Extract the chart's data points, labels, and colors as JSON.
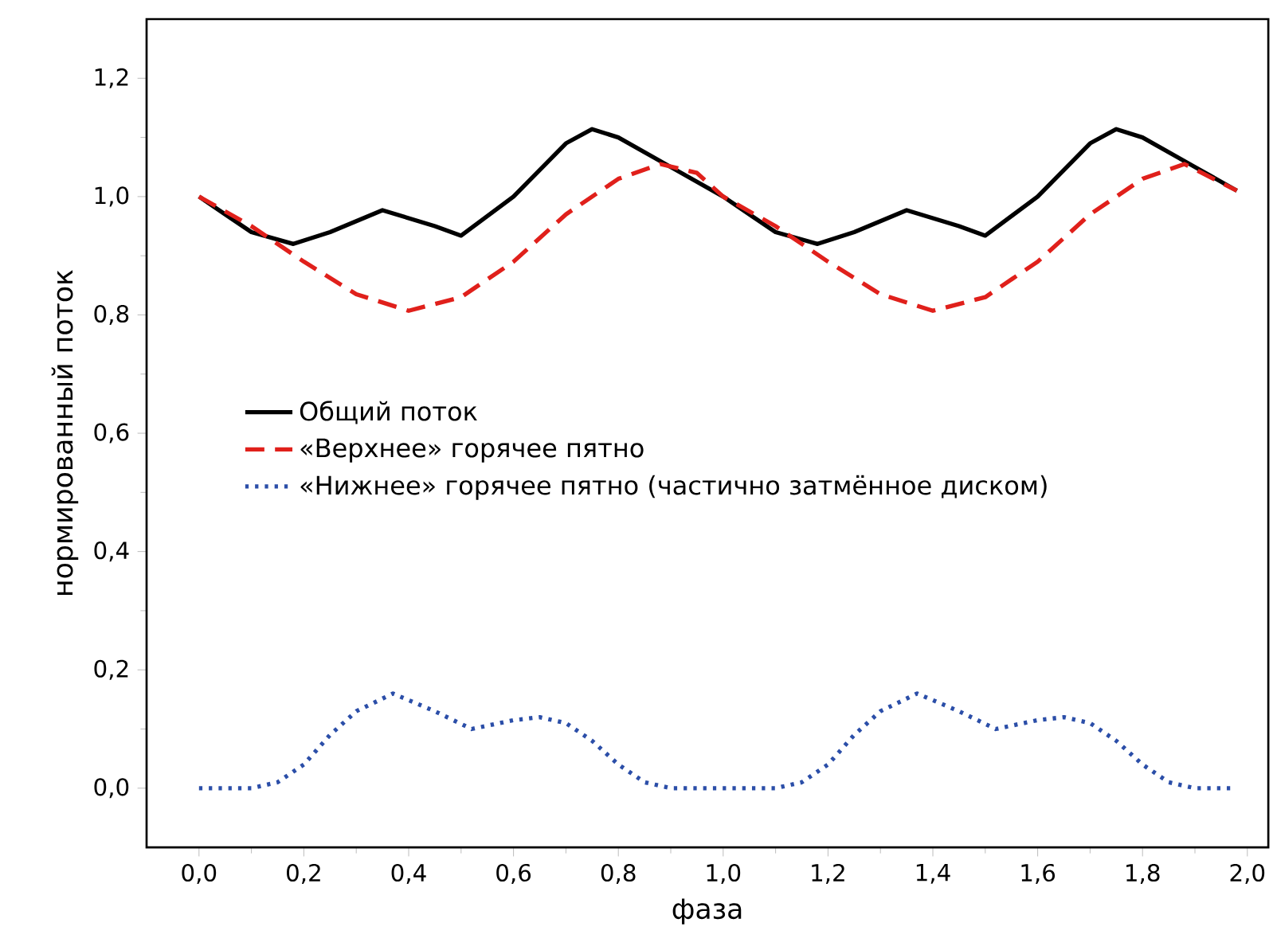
{
  "chart_data": {
    "type": "line",
    "xlabel": "фаза",
    "ylabel": "нормированный поток",
    "xlim": [
      -0.1,
      2.04
    ],
    "ylim": [
      -0.1,
      1.3
    ],
    "xticks": [
      {
        "value": 0,
        "label": "0,0"
      },
      {
        "value": 0.2,
        "label": "0,2"
      },
      {
        "value": 0.4,
        "label": "0,4"
      },
      {
        "value": 0.6,
        "label": "0,6"
      },
      {
        "value": 0.8,
        "label": "0,8"
      },
      {
        "value": 1.0,
        "label": "1,0"
      },
      {
        "value": 1.2,
        "label": "1,2"
      },
      {
        "value": 1.4,
        "label": "1,4"
      },
      {
        "value": 1.6,
        "label": "1,6"
      },
      {
        "value": 1.8,
        "label": "1,8"
      },
      {
        "value": 2.0,
        "label": "2,0"
      }
    ],
    "yticks": [
      {
        "value": 0,
        "label": "0,0"
      },
      {
        "value": 0.2,
        "label": "0,2"
      },
      {
        "value": 0.4,
        "label": "0,4"
      },
      {
        "value": 0.6,
        "label": "0,6"
      },
      {
        "value": 0.8,
        "label": "0,8"
      },
      {
        "value": 1.0,
        "label": "1,0"
      },
      {
        "value": 1.2,
        "label": "1,2"
      }
    ],
    "legend": "center left",
    "grid": false,
    "marker": "none",
    "series": [
      {
        "name": "Общий поток",
        "color": "#000000",
        "line_style": "solid",
        "x": [
          0,
          0.05,
          0.1,
          0.18,
          0.25,
          0.35,
          0.45,
          0.5,
          0.6,
          0.7,
          0.75,
          0.8,
          0.9,
          1.0,
          1.05,
          1.1,
          1.18,
          1.25,
          1.35,
          1.45,
          1.5,
          1.6,
          1.7,
          1.75,
          1.8,
          1.9,
          1.98
        ],
        "values": [
          1.0,
          0.97,
          0.94,
          0.92,
          0.94,
          0.977,
          0.95,
          0.934,
          1.0,
          1.09,
          1.114,
          1.1,
          1.05,
          1.0,
          0.97,
          0.94,
          0.92,
          0.94,
          0.977,
          0.95,
          0.934,
          1.0,
          1.09,
          1.114,
          1.1,
          1.05,
          1.01
        ]
      },
      {
        "name": "«Верхнее» горячее пятно",
        "color": "#e0201b",
        "line_style": "dashed",
        "x": [
          0,
          0.1,
          0.2,
          0.3,
          0.4,
          0.5,
          0.6,
          0.7,
          0.8,
          0.88,
          0.95,
          1.0,
          1.1,
          1.2,
          1.3,
          1.4,
          1.5,
          1.6,
          1.7,
          1.8,
          1.88,
          1.98
        ],
        "values": [
          1.0,
          0.95,
          0.89,
          0.835,
          0.807,
          0.83,
          0.89,
          0.97,
          1.03,
          1.055,
          1.04,
          1.0,
          0.95,
          0.89,
          0.835,
          0.807,
          0.83,
          0.89,
          0.97,
          1.03,
          1.055,
          1.01
        ]
      },
      {
        "name": "«Нижнее» горячее пятно (частично затмённое диском)",
        "color": "#2b4ea8",
        "line_style": "dotted",
        "x": [
          0,
          0.05,
          0.1,
          0.15,
          0.2,
          0.25,
          0.3,
          0.37,
          0.45,
          0.52,
          0.6,
          0.65,
          0.7,
          0.75,
          0.8,
          0.85,
          0.9,
          1.0,
          1.05,
          1.1,
          1.15,
          1.2,
          1.25,
          1.3,
          1.37,
          1.45,
          1.52,
          1.6,
          1.65,
          1.7,
          1.75,
          1.8,
          1.85,
          1.9,
          1.97
        ],
        "values": [
          0,
          0,
          0,
          0.01,
          0.04,
          0.09,
          0.13,
          0.16,
          0.13,
          0.1,
          0.115,
          0.12,
          0.11,
          0.08,
          0.04,
          0.01,
          0,
          0,
          0,
          0,
          0.01,
          0.04,
          0.09,
          0.13,
          0.16,
          0.13,
          0.1,
          0.115,
          0.12,
          0.11,
          0.08,
          0.04,
          0.01,
          0,
          0
        ]
      }
    ]
  }
}
